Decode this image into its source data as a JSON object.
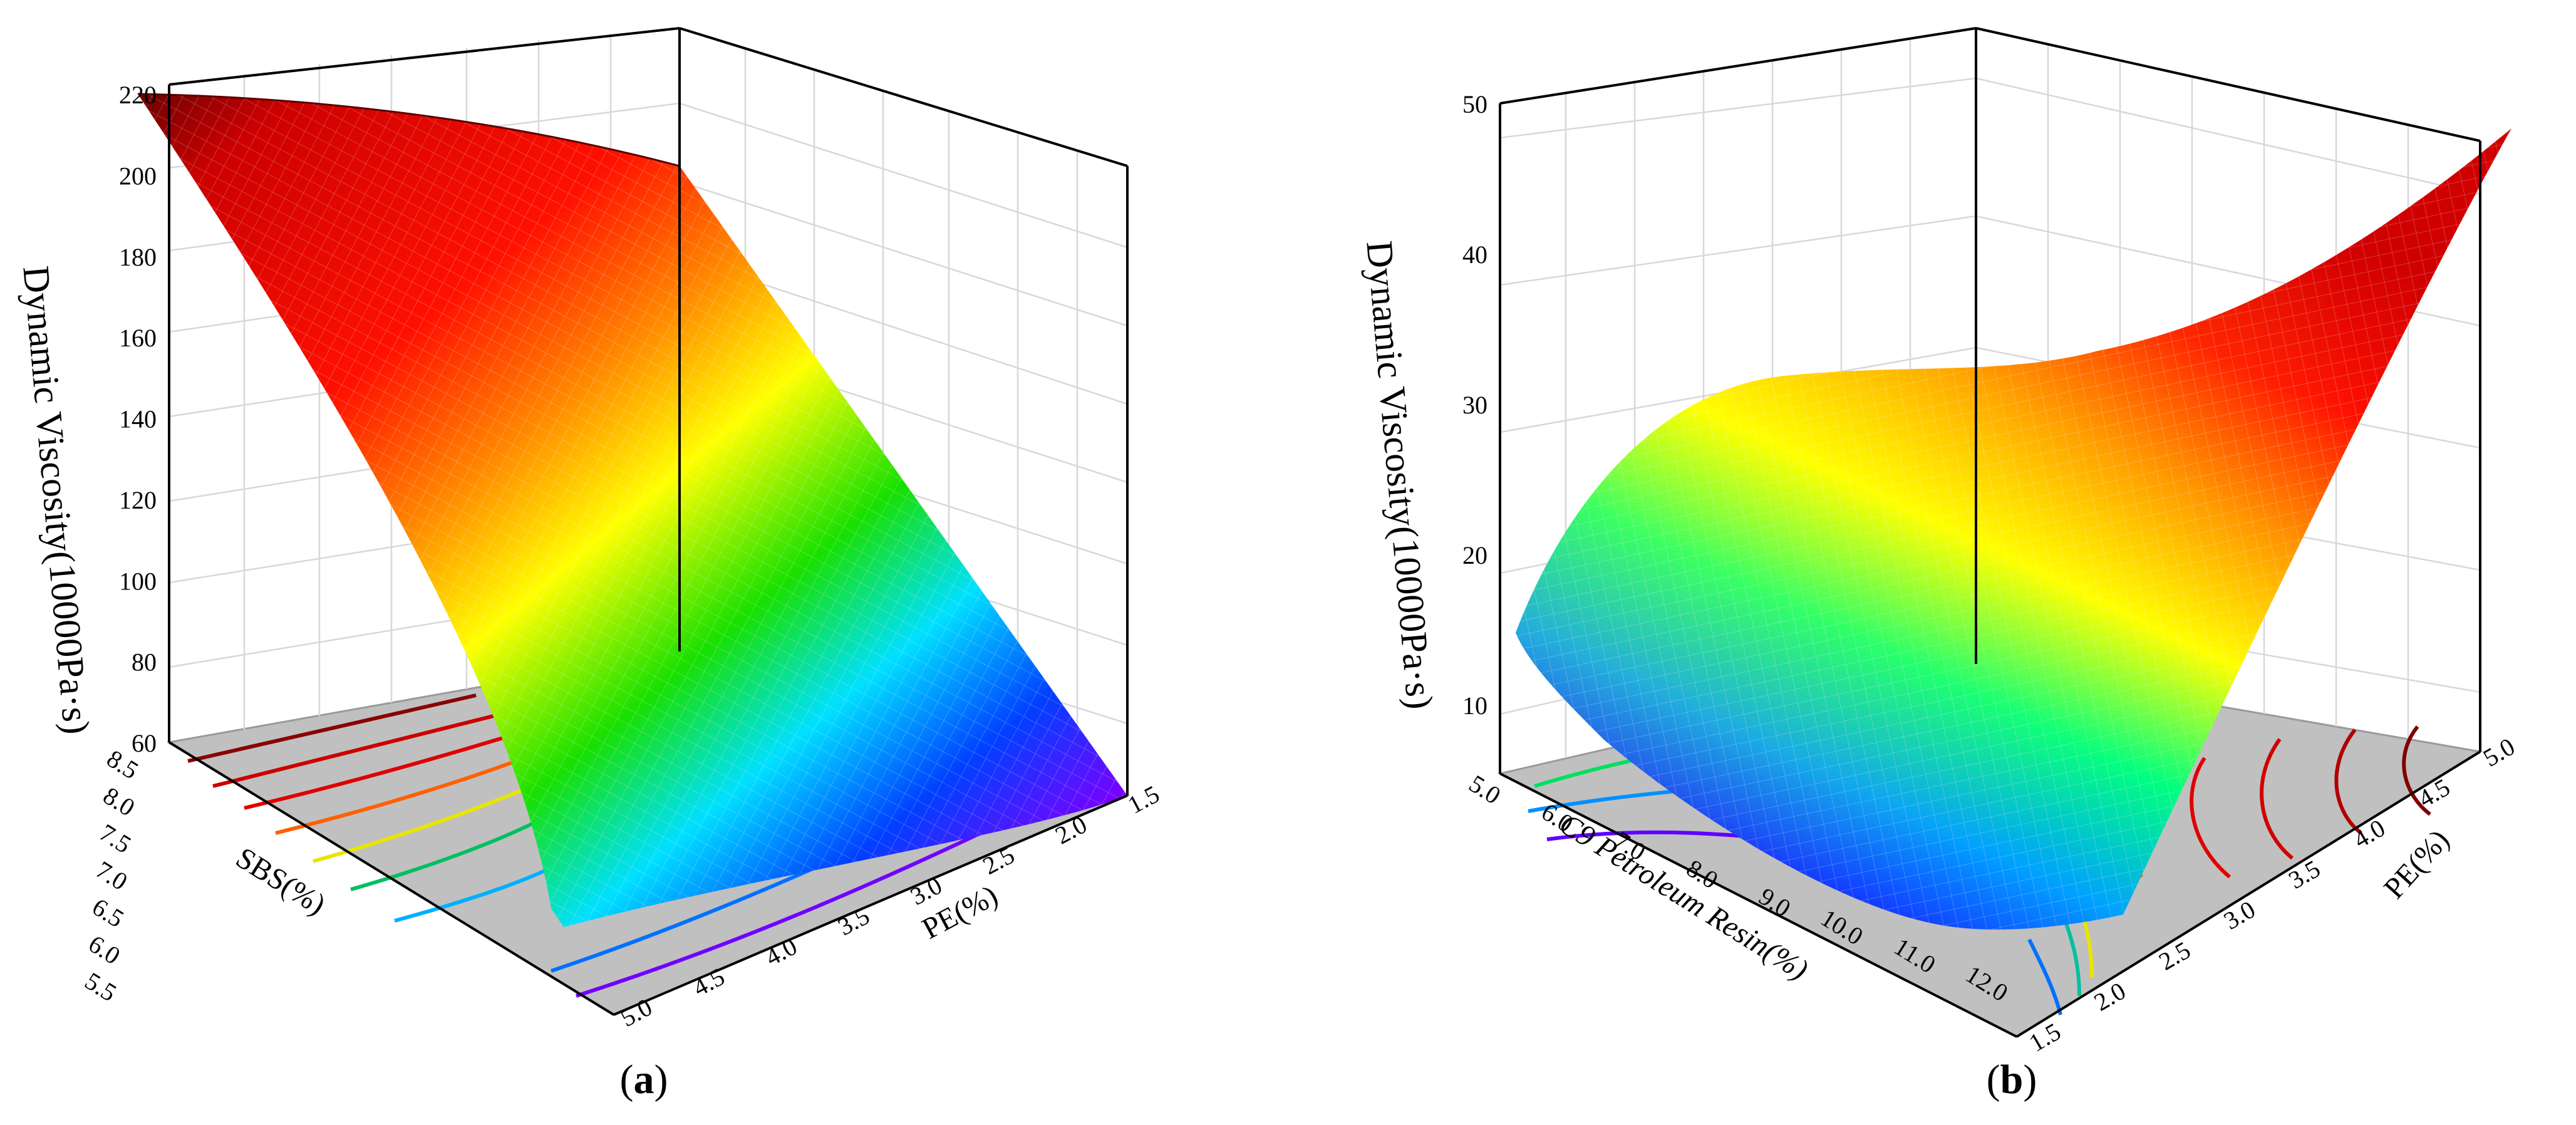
{
  "figure": {
    "panel_a_label": {
      "open": "(",
      "letter": "a",
      "close": ")"
    },
    "panel_b_label": {
      "open": "(",
      "letter": "b",
      "close": ")"
    }
  },
  "chart_data": [
    {
      "type": "surface3d",
      "panel": "a",
      "zlabel": "Dynamic Viscosity(10000Pa·s)",
      "ylabel": "SBS(%)",
      "xlabel": "PE(%)",
      "z_ticks": [
        "60",
        "80",
        "100",
        "120",
        "140",
        "160",
        "180",
        "200",
        "220"
      ],
      "sbs_ticks": [
        "8.5",
        "8.0",
        "7.5",
        "7.0",
        "6.5",
        "6.0",
        "5.5"
      ],
      "pe_ticks": [
        "5.0",
        "4.5",
        "4.0",
        "3.5",
        "3.0",
        "2.5",
        "2.0",
        "1.5"
      ],
      "zlim": [
        60,
        220
      ],
      "sbs_range": [
        5.5,
        9.0
      ],
      "pe_range": [
        1.5,
        5.0
      ],
      "contours_on_floor": true,
      "colormap": [
        "#7a00ff",
        "#0000ff",
        "#00a0ff",
        "#00ff80",
        "#ffff00",
        "#ff8000",
        "#ff0000",
        "#7a0000"
      ]
    },
    {
      "type": "surface3d",
      "panel": "b",
      "zlabel": "Dynamic Viscosity(10000Pa·s)",
      "ylabel": "C9 Petroleum Resin(%)",
      "xlabel": "PE(%)",
      "z_ticks": [
        "10",
        "20",
        "30",
        "40",
        "50"
      ],
      "resin_ticks": [
        "5.0",
        "6.0",
        "7.0",
        "8.0",
        "9.0",
        "10.0",
        "11.0",
        "12.0"
      ],
      "pe_ticks": [
        "1.5",
        "2.0",
        "2.5",
        "3.0",
        "3.5",
        "4.0",
        "4.5",
        "5.0"
      ],
      "zlim": [
        5,
        50
      ],
      "resin_range": [
        5.0,
        12.0
      ],
      "pe_range": [
        1.5,
        5.0
      ],
      "contours_on_floor": true,
      "colormap": [
        "#7a00ff",
        "#0000ff",
        "#00a0ff",
        "#00ff80",
        "#ffff00",
        "#ff8000",
        "#ff0000",
        "#7a0000"
      ]
    }
  ]
}
